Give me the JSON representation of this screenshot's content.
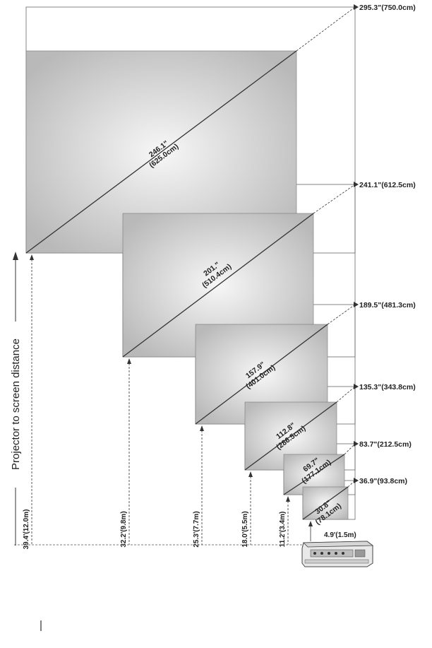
{
  "side_label": "Projector to screen distance",
  "screens": [
    {
      "diagonal": "246.1\"",
      "diagonal_cm": "(625.0cm)",
      "edge": "295.3\"(750.0cm)",
      "distance": "39.4'(12.0m)"
    },
    {
      "diagonal": "201.\"",
      "diagonal_cm": "(510.4cm)",
      "edge": "241.1\"(612.5cm)",
      "distance": "32.2'(9.8m)"
    },
    {
      "diagonal": "157.9\"",
      "diagonal_cm": "(401.0cm)",
      "edge": "189.5\"(481.3cm)",
      "distance": "25.3'(7.7m)"
    },
    {
      "diagonal": "112.8\"",
      "diagonal_cm": "(286.5cm)",
      "edge": "135.3\"(343.8cm)",
      "distance": "18.0'(5.5m)"
    },
    {
      "diagonal": "69.7\"",
      "diagonal_cm": "(177.1cm)",
      "edge": "83.7\"(212.5cm)",
      "distance": "11.2'(3.4m)"
    },
    {
      "diagonal": "30.8\"",
      "diagonal_cm": "(78.1cm)",
      "edge": "36.9\"(93.8cm)",
      "distance": "4.9'(1.5m)"
    }
  ],
  "colors": {
    "screen_center": "#f7f7f7",
    "screen_edge": "#b9b9b9",
    "line": "#333333"
  },
  "icons": {
    "projector": "projector-icon"
  }
}
